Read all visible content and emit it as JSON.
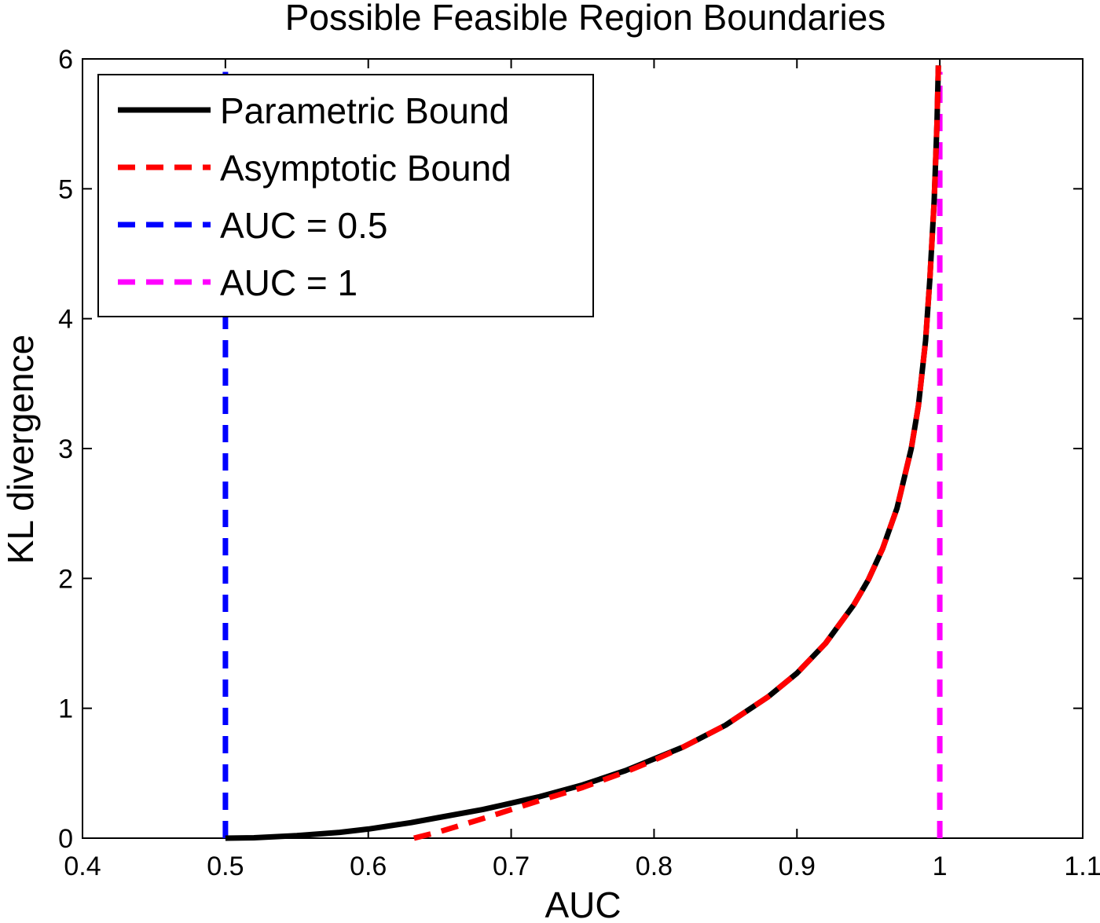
{
  "chart_data": {
    "type": "line",
    "title": "Possible Feasible Region Boundaries",
    "xlabel": "AUC",
    "ylabel": "KL divergence",
    "xlim": [
      0.4,
      1.1
    ],
    "ylim": [
      0,
      6
    ],
    "xticks": [
      0.4,
      0.5,
      0.6,
      0.7,
      0.8,
      0.9,
      1.0,
      1.1
    ],
    "xtick_labels": [
      "0.4",
      "0.5",
      "0.6",
      "0.7",
      "0.8",
      "0.9",
      "1",
      "1.1"
    ],
    "yticks": [
      0,
      1,
      2,
      3,
      4,
      5,
      6
    ],
    "ytick_labels": [
      "0",
      "1",
      "2",
      "3",
      "4",
      "5",
      "6"
    ],
    "grid": false,
    "legend_position": "top-left",
    "series": [
      {
        "name": "Parametric Bound",
        "color": "#000000",
        "style": "solid",
        "x": [
          0.5,
          0.52,
          0.55,
          0.58,
          0.6,
          0.63,
          0.65,
          0.68,
          0.7,
          0.72,
          0.75,
          0.78,
          0.8,
          0.82,
          0.85,
          0.88,
          0.9,
          0.92,
          0.94,
          0.95,
          0.96,
          0.97,
          0.98,
          0.985,
          0.99,
          0.993,
          0.996,
          0.998,
          0.999
        ],
        "y": [
          0.0,
          0.003,
          0.02,
          0.045,
          0.07,
          0.12,
          0.16,
          0.22,
          0.27,
          0.32,
          0.41,
          0.52,
          0.61,
          0.7,
          0.87,
          1.09,
          1.27,
          1.5,
          1.8,
          1.99,
          2.23,
          2.54,
          3.0,
          3.33,
          3.83,
          4.3,
          4.9,
          5.5,
          5.95
        ]
      },
      {
        "name": "Asymptotic Bound",
        "color": "#ff0000",
        "style": "dashed",
        "x": [
          0.632,
          0.65,
          0.68,
          0.7,
          0.72,
          0.75,
          0.78,
          0.8,
          0.82,
          0.85,
          0.88,
          0.9,
          0.92,
          0.94,
          0.95,
          0.96,
          0.97,
          0.98,
          0.985,
          0.99,
          0.993,
          0.996,
          0.998,
          0.999
        ],
        "y": [
          0.0,
          0.05,
          0.15,
          0.22,
          0.29,
          0.39,
          0.51,
          0.6,
          0.7,
          0.87,
          1.09,
          1.27,
          1.5,
          1.8,
          1.99,
          2.23,
          2.54,
          3.0,
          3.33,
          3.83,
          4.3,
          4.9,
          5.5,
          5.95
        ]
      },
      {
        "name": "AUC = 0.5",
        "color": "#0000ff",
        "style": "dashed",
        "x": [
          0.5,
          0.5
        ],
        "y": [
          0,
          5.9
        ]
      },
      {
        "name": "AUC = 1",
        "color": "#ff00ff",
        "style": "dashed",
        "x": [
          1.0,
          1.0
        ],
        "y": [
          0,
          5.9
        ]
      }
    ]
  }
}
